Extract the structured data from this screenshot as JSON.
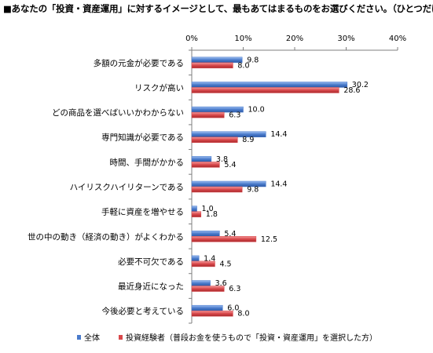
{
  "chart_data": {
    "type": "bar",
    "orientation": "horizontal",
    "title": "■あなたの「投資・資産運用」に対するイメージとして、最もあてはまるものをお選びください。（ひとつだけ）",
    "categories": [
      "多額の元金が必要である",
      "リスクが高い",
      "どの商品を選べばいいかわからない",
      "専門知識が必要である",
      "時間、手間がかかる",
      "ハイリスクハイリターンである",
      "手軽に資産を増やせる",
      "世の中の動き（経済の動き）がよくわかる",
      "必要不可欠である",
      "最近身近になった",
      "今後必要と考えている"
    ],
    "series": [
      {
        "name": "全体",
        "color": "#4a7bcb",
        "values": [
          9.8,
          30.2,
          10.0,
          14.4,
          3.8,
          14.4,
          1.0,
          5.4,
          1.4,
          3.6,
          6.0
        ],
        "labels": [
          "9.8",
          "30.2",
          "10.0",
          "14.4",
          "3.8",
          "14.4",
          "1.0",
          "5.4",
          "1.4",
          "3.6",
          "6.0"
        ]
      },
      {
        "name": "投資経験者（普段お金を使うもので「投資・資産運用」を選択した方）",
        "color": "#d9484b",
        "values": [
          8.0,
          28.6,
          6.3,
          8.9,
          5.4,
          9.8,
          1.8,
          12.5,
          4.5,
          6.3,
          8.0
        ],
        "labels": [
          "8.0",
          "28.6",
          "6.3",
          "8.9",
          "5.4",
          "9.8",
          "1.8",
          "12.5",
          "4.5",
          "6.3",
          "8.0"
        ]
      }
    ],
    "x_ticks": [
      "0%",
      "10%",
      "20%",
      "30%",
      "40%"
    ],
    "xlim": [
      0,
      40
    ],
    "grid": false,
    "legend_position": "bottom-left"
  }
}
